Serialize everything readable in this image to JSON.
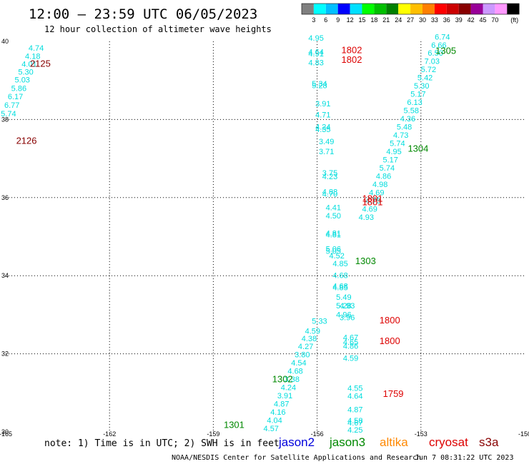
{
  "title": "12:00 – 23:59 UTC 06/05/2023",
  "subtitle": "12 hour collection of altimeter wave heights",
  "note": "note: 1) Time is in UTC; 2) SWH is in feet",
  "credit": "NOAA/NESDIS Center for Satellite Applications and Research",
  "timestamp": "Jun  7 08:31:22 UTC 2023",
  "legend_missions": [
    {
      "name": "jason2",
      "color": "#0000dd"
    },
    {
      "name": "jason3",
      "color": "#008800"
    },
    {
      "name": "altika",
      "color": "#ff8800"
    },
    {
      "name": "cryosat",
      "color": "#dd0000"
    },
    {
      "name": "s3a",
      "color": "#880000"
    }
  ],
  "color_scale": {
    "unit": "(ft)",
    "labels": [
      "3",
      "6",
      "9",
      "12",
      "15",
      "18",
      "21",
      "24",
      "27",
      "30",
      "33",
      "36",
      "39",
      "42",
      "45",
      "70"
    ],
    "colors": [
      "#808080",
      "#00ffff",
      "#00bfff",
      "#0000ff",
      "#00e0ff",
      "#00ff00",
      "#00c000",
      "#008000",
      "#ffff00",
      "#ffbf00",
      "#ff8000",
      "#ff0000",
      "#cc0000",
      "#880000",
      "#990099",
      "#cc99ff",
      "#ff99ff",
      "#000000"
    ]
  },
  "chart_data": {
    "type": "scatter",
    "xlabel": "",
    "ylabel": "",
    "xlim": [
      -165,
      -150
    ],
    "ylim": [
      30,
      40
    ],
    "x_ticks": [
      "-165",
      "-162",
      "-159",
      "-156",
      "-153",
      "-150"
    ],
    "y_ticks": [
      "30",
      "32",
      "34",
      "36",
      "38",
      "40"
    ],
    "grid": true,
    "point_color": "#00dddd",
    "points": [
      {
        "lon": -164.12,
        "lat": 39.76,
        "v": "4.74"
      },
      {
        "lon": -164.22,
        "lat": 39.55,
        "v": "4.18"
      },
      {
        "lon": -164.32,
        "lat": 39.35,
        "v": "4.01"
      },
      {
        "lon": -164.42,
        "lat": 39.15,
        "v": "5.30"
      },
      {
        "lon": -164.52,
        "lat": 38.95,
        "v": "5.03"
      },
      {
        "lon": -164.62,
        "lat": 38.73,
        "v": "5.86"
      },
      {
        "lon": -164.72,
        "lat": 38.52,
        "v": "6.17"
      },
      {
        "lon": -164.82,
        "lat": 38.3,
        "v": "6.77"
      },
      {
        "lon": -164.92,
        "lat": 38.08,
        "v": "5.74"
      },
      {
        "lon": -165.02,
        "lat": 37.86,
        "v": "6.39"
      },
      {
        "lon": -165.12,
        "lat": 37.64,
        "v": "5.97"
      },
      {
        "lon": -165.22,
        "lat": 37.42,
        "v": "6.05"
      },
      {
        "lon": -156.03,
        "lat": 40.02,
        "v": "4.95"
      },
      {
        "lon": -156.03,
        "lat": 39.66,
        "v": "4.64"
      },
      {
        "lon": -156.03,
        "lat": 39.62,
        "v": "4.91"
      },
      {
        "lon": -156.03,
        "lat": 39.39,
        "v": "4.83"
      },
      {
        "lon": -155.93,
        "lat": 38.85,
        "v": "5.34"
      },
      {
        "lon": -155.93,
        "lat": 38.8,
        "v": "5.28"
      },
      {
        "lon": -155.83,
        "lat": 38.34,
        "v": "3.91"
      },
      {
        "lon": -155.83,
        "lat": 38.05,
        "v": "4.71"
      },
      {
        "lon": -155.83,
        "lat": 37.74,
        "v": "4.24"
      },
      {
        "lon": -155.83,
        "lat": 37.68,
        "v": "4.35"
      },
      {
        "lon": -155.73,
        "lat": 37.37,
        "v": "3.49"
      },
      {
        "lon": -155.73,
        "lat": 37.11,
        "v": "3.71"
      },
      {
        "lon": -155.63,
        "lat": 36.56,
        "v": "3.75"
      },
      {
        "lon": -155.63,
        "lat": 36.47,
        "v": "4.23"
      },
      {
        "lon": -155.63,
        "lat": 36.08,
        "v": "4.88"
      },
      {
        "lon": -155.63,
        "lat": 36.02,
        "v": "4.70"
      },
      {
        "lon": -155.53,
        "lat": 35.68,
        "v": "4.41"
      },
      {
        "lon": -155.53,
        "lat": 35.47,
        "v": "4.50"
      },
      {
        "lon": -155.53,
        "lat": 35.02,
        "v": "4.81"
      },
      {
        "lon": -155.53,
        "lat": 34.98,
        "v": "4.81"
      },
      {
        "lon": -155.53,
        "lat": 34.62,
        "v": "5.06"
      },
      {
        "lon": -155.53,
        "lat": 34.56,
        "v": "5.05"
      },
      {
        "lon": -155.43,
        "lat": 34.44,
        "v": "4.52"
      },
      {
        "lon": -155.33,
        "lat": 34.24,
        "v": "4.85"
      },
      {
        "lon": -155.33,
        "lat": 33.94,
        "v": "4.68"
      },
      {
        "lon": -155.33,
        "lat": 33.67,
        "v": "4.68"
      },
      {
        "lon": -155.33,
        "lat": 33.63,
        "v": "4.85"
      },
      {
        "lon": -155.23,
        "lat": 33.38,
        "v": "5.49"
      },
      {
        "lon": -155.23,
        "lat": 33.16,
        "v": "5.28"
      },
      {
        "lon": -155.13,
        "lat": 33.16,
        "v": "4.93"
      },
      {
        "lon": -155.23,
        "lat": 32.93,
        "v": "4.96"
      },
      {
        "lon": -155.13,
        "lat": 32.86,
        "v": "3.96"
      },
      {
        "lon": -155.93,
        "lat": 32.77,
        "v": "5.33"
      },
      {
        "lon": -155.03,
        "lat": 32.35,
        "v": "4.67"
      },
      {
        "lon": -155.03,
        "lat": 32.23,
        "v": "4.65"
      },
      {
        "lon": -155.03,
        "lat": 32.13,
        "v": "4.86"
      },
      {
        "lon": -155.03,
        "lat": 31.82,
        "v": "4.59"
      },
      {
        "lon": -156.13,
        "lat": 32.51,
        "v": "4.59"
      },
      {
        "lon": -156.23,
        "lat": 32.32,
        "v": "4.38"
      },
      {
        "lon": -156.33,
        "lat": 32.12,
        "v": "4.27"
      },
      {
        "lon": -156.43,
        "lat": 31.91,
        "v": "3.80"
      },
      {
        "lon": -156.53,
        "lat": 31.7,
        "v": "4.54"
      },
      {
        "lon": -156.63,
        "lat": 31.49,
        "v": "4.68"
      },
      {
        "lon": -156.73,
        "lat": 31.28,
        "v": "3.38"
      },
      {
        "lon": -156.83,
        "lat": 31.07,
        "v": "4.24"
      },
      {
        "lon": -156.93,
        "lat": 30.86,
        "v": "3.91"
      },
      {
        "lon": -157.03,
        "lat": 30.65,
        "v": "4.87"
      },
      {
        "lon": -157.13,
        "lat": 30.44,
        "v": "4.16"
      },
      {
        "lon": -157.23,
        "lat": 30.23,
        "v": "4.04"
      },
      {
        "lon": -157.33,
        "lat": 30.02,
        "v": "4.57"
      },
      {
        "lon": -157.43,
        "lat": 29.81,
        "v": "4.73"
      },
      {
        "lon": -157.53,
        "lat": 29.6,
        "v": "4.20"
      },
      {
        "lon": -157.63,
        "lat": 29.39,
        "v": "3.81"
      },
      {
        "lon": -157.73,
        "lat": 29.18,
        "v": "3.40"
      },
      {
        "lon": -157.83,
        "lat": 28.97,
        "v": "4.33"
      },
      {
        "lon": -157.93,
        "lat": 28.76,
        "v": "4.49"
      },
      {
        "lon": -158.03,
        "lat": 28.55,
        "v": "3.74"
      },
      {
        "lon": -158.13,
        "lat": 28.34,
        "v": "3.47"
      },
      {
        "lon": -154.9,
        "lat": 31.05,
        "v": "4.55"
      },
      {
        "lon": -154.9,
        "lat": 30.85,
        "v": "4.64"
      },
      {
        "lon": -154.9,
        "lat": 30.5,
        "v": "4.87"
      },
      {
        "lon": -154.9,
        "lat": 30.22,
        "v": "4.58"
      },
      {
        "lon": -154.9,
        "lat": 30.16,
        "v": "4.67"
      },
      {
        "lon": -154.9,
        "lat": 29.98,
        "v": "4.25"
      },
      {
        "lon": -154.9,
        "lat": 29.89,
        "v": "4.28"
      },
      {
        "lon": -154.9,
        "lat": 29.75,
        "v": "4.20"
      },
      {
        "lon": -154.8,
        "lat": 29.3,
        "v": "5.01"
      },
      {
        "lon": -154.8,
        "lat": 28.91,
        "v": "3.84"
      },
      {
        "lon": -154.8,
        "lat": 28.44,
        "v": "3.69"
      },
      {
        "lon": -154.8,
        "lat": 28.09,
        "v": "3.81"
      },
      {
        "lon": -154.8,
        "lat": 28.03,
        "v": "3.30"
      },
      {
        "lon": -152.38,
        "lat": 40.05,
        "v": "6.74"
      },
      {
        "lon": -152.48,
        "lat": 39.84,
        "v": "6.66"
      },
      {
        "lon": -152.58,
        "lat": 39.63,
        "v": "6.50"
      },
      {
        "lon": -152.68,
        "lat": 39.42,
        "v": "7.03"
      },
      {
        "lon": -152.78,
        "lat": 39.21,
        "v": "5.72"
      },
      {
        "lon": -152.88,
        "lat": 39.0,
        "v": "5.42"
      },
      {
        "lon": -152.98,
        "lat": 38.79,
        "v": "5.30"
      },
      {
        "lon": -153.08,
        "lat": 38.58,
        "v": "5.17"
      },
      {
        "lon": -153.18,
        "lat": 38.37,
        "v": "6.13"
      },
      {
        "lon": -153.28,
        "lat": 38.16,
        "v": "5.58"
      },
      {
        "lon": -153.38,
        "lat": 37.95,
        "v": "4.36"
      },
      {
        "lon": -153.48,
        "lat": 37.74,
        "v": "5.48"
      },
      {
        "lon": -153.58,
        "lat": 37.53,
        "v": "4.73"
      },
      {
        "lon": -153.68,
        "lat": 37.32,
        "v": "5.74"
      },
      {
        "lon": -153.78,
        "lat": 37.11,
        "v": "4.95"
      },
      {
        "lon": -153.88,
        "lat": 36.9,
        "v": "5.17"
      },
      {
        "lon": -153.98,
        "lat": 36.69,
        "v": "5.74"
      },
      {
        "lon": -154.08,
        "lat": 36.48,
        "v": "4.86"
      },
      {
        "lon": -154.18,
        "lat": 36.27,
        "v": "4.98"
      },
      {
        "lon": -154.28,
        "lat": 36.06,
        "v": "4.69"
      },
      {
        "lon": -154.38,
        "lat": 35.85,
        "v": "4.75"
      },
      {
        "lon": -154.48,
        "lat": 35.64,
        "v": "4.69"
      },
      {
        "lon": -154.58,
        "lat": 35.43,
        "v": "4.93"
      }
    ],
    "time_labels": [
      {
        "lon": -164.0,
        "lat": 39.35,
        "text": "2125",
        "color": "#880000"
      },
      {
        "lon": -164.4,
        "lat": 37.38,
        "text": "2126",
        "color": "#880000"
      },
      {
        "lon": -155.0,
        "lat": 39.7,
        "text": "1802",
        "color": "#dd0000"
      },
      {
        "lon": -155.0,
        "lat": 39.45,
        "text": "1802",
        "color": "#dd0000"
      },
      {
        "lon": -154.4,
        "lat": 35.9,
        "text": "1801",
        "color": "#dd0000"
      },
      {
        "lon": -154.4,
        "lat": 35.8,
        "text": "1801",
        "color": "#dd0000"
      },
      {
        "lon": -152.28,
        "lat": 39.68,
        "text": "1305",
        "color": "#008800"
      },
      {
        "lon": -153.08,
        "lat": 37.18,
        "text": "1304",
        "color": "#008800"
      },
      {
        "lon": -154.6,
        "lat": 34.3,
        "text": "1303",
        "color": "#008800"
      },
      {
        "lon": -153.9,
        "lat": 32.78,
        "text": "1800",
        "color": "#dd0000"
      },
      {
        "lon": -153.9,
        "lat": 32.25,
        "text": "1800",
        "color": "#dd0000"
      },
      {
        "lon": -157.0,
        "lat": 31.27,
        "text": "1302",
        "color": "#008800"
      },
      {
        "lon": -153.8,
        "lat": 30.9,
        "text": "1759",
        "color": "#dd0000"
      },
      {
        "lon": -158.4,
        "lat": 30.1,
        "text": "1301",
        "color": "#008800"
      }
    ]
  }
}
